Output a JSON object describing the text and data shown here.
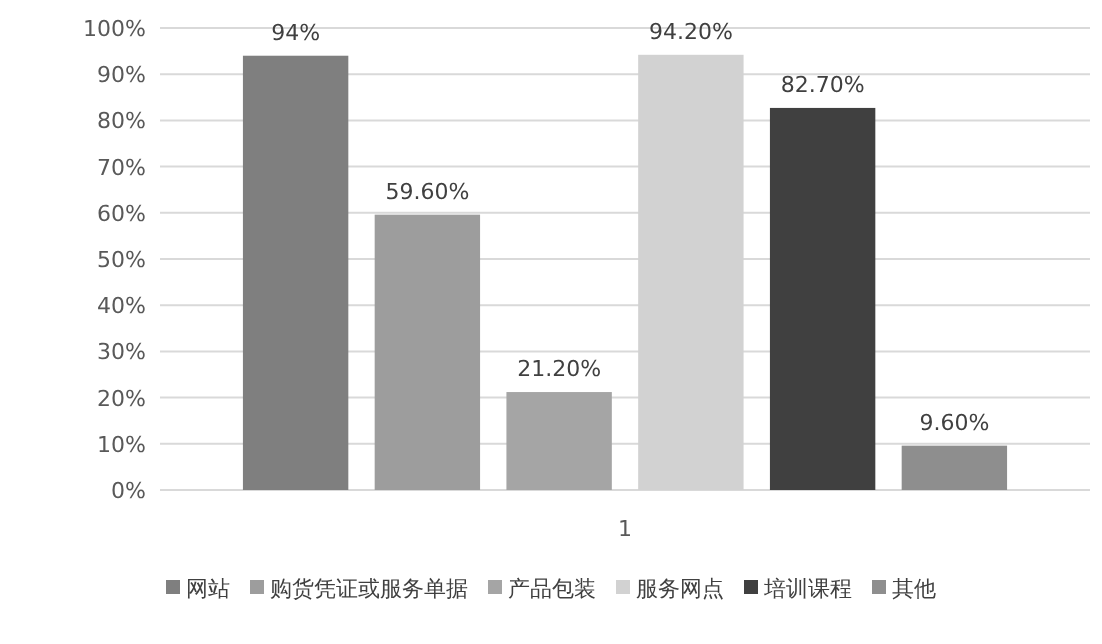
{
  "chart_data": {
    "type": "bar",
    "categories": [
      "1"
    ],
    "series": [
      {
        "name": "网站",
        "color": "#7f7f7f",
        "values": [
          94
        ],
        "value_labels": [
          "94%"
        ]
      },
      {
        "name": "购货凭证或服务单据",
        "color": "#9d9d9d",
        "values": [
          59.6
        ],
        "value_labels": [
          "59.60%"
        ]
      },
      {
        "name": "产品包装",
        "color": "#a5a5a5",
        "values": [
          21.2
        ],
        "value_labels": [
          "21.20%"
        ]
      },
      {
        "name": "服务网点",
        "color": "#d2d2d2",
        "values": [
          94.2
        ],
        "value_labels": [
          "94.20%"
        ]
      },
      {
        "name": "培训课程",
        "color": "#404040",
        "values": [
          82.7
        ],
        "value_labels": [
          "82.70%"
        ]
      },
      {
        "name": "其他",
        "color": "#8e8e8e",
        "values": [
          9.6
        ],
        "value_labels": [
          "9.60%"
        ]
      }
    ],
    "ylim": [
      0,
      100
    ],
    "yticks": [
      {
        "value": 0,
        "label": "0%"
      },
      {
        "value": 10,
        "label": "10%"
      },
      {
        "value": 20,
        "label": "20%"
      },
      {
        "value": 30,
        "label": "30%"
      },
      {
        "value": 40,
        "label": "40%"
      },
      {
        "value": 50,
        "label": "50%"
      },
      {
        "value": 60,
        "label": "60%"
      },
      {
        "value": 70,
        "label": "70%"
      },
      {
        "value": 80,
        "label": "80%"
      },
      {
        "value": 90,
        "label": "90%"
      },
      {
        "value": 100,
        "label": "100%"
      }
    ],
    "grid": "y",
    "legend": "bottom"
  }
}
